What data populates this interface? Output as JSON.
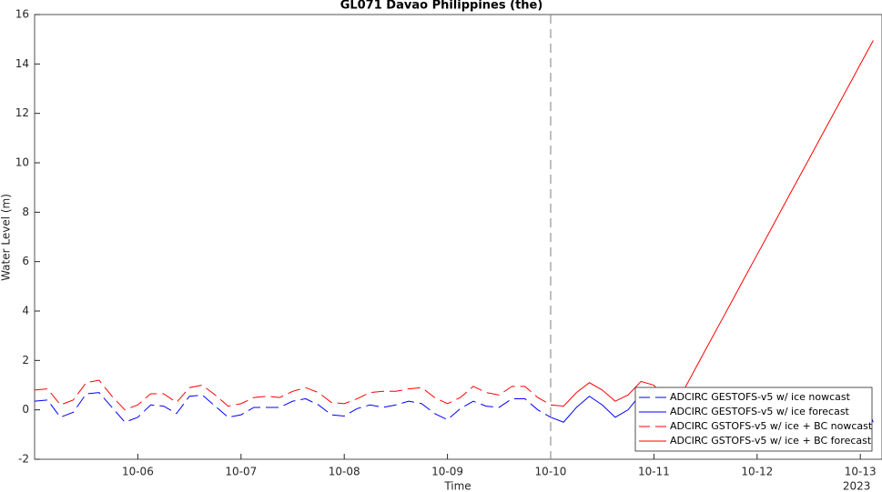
{
  "chart_data": {
    "type": "line",
    "title": "GL071 Davao Philippines (the)",
    "xlabel": "Time",
    "ylabel": "Water Level (m)",
    "x_year_label": "2023",
    "x": [
      5.0,
      5.125,
      5.25,
      5.375,
      5.5,
      5.625,
      5.75,
      5.875,
      6.0,
      6.125,
      6.25,
      6.375,
      6.5,
      6.625,
      6.75,
      6.875,
      7.0,
      7.125,
      7.25,
      7.375,
      7.5,
      7.625,
      7.75,
      7.875,
      8.0,
      8.125,
      8.25,
      8.375,
      8.5,
      8.625,
      8.75,
      8.875,
      9.0,
      9.125,
      9.25,
      9.375,
      9.5,
      9.625,
      9.75,
      9.875,
      10.0,
      10.125,
      10.25,
      10.375,
      10.5,
      10.625,
      10.75,
      10.875,
      11.0,
      11.125,
      11.25,
      11.375,
      11.5,
      11.625,
      11.75,
      11.875,
      12.0,
      12.125,
      12.25,
      12.375,
      12.5,
      12.625,
      12.75,
      12.875,
      13.0,
      13.125
    ],
    "xlim": [
      5,
      13.21
    ],
    "xticks": [
      {
        "value": 6,
        "label": "10-06"
      },
      {
        "value": 7,
        "label": "10-07"
      },
      {
        "value": 8,
        "label": "10-08"
      },
      {
        "value": 9,
        "label": "10-09"
      },
      {
        "value": 10,
        "label": "10-10"
      },
      {
        "value": 11,
        "label": "10-11"
      },
      {
        "value": 12,
        "label": "10-12"
      },
      {
        "value": 13,
        "label": "10-13"
      }
    ],
    "ylim": [
      -2,
      16
    ],
    "yticks": [
      -2,
      0,
      2,
      4,
      6,
      8,
      10,
      12,
      14,
      16
    ],
    "vline_x": 10,
    "legend": "lower right",
    "series": [
      {
        "name": "ADCIRC GESTOFS-v5 w/ ice nowcast",
        "color": "#0000ff",
        "dash": "dashed",
        "values": [
          0.35,
          0.4,
          -0.3,
          -0.1,
          0.65,
          0.7,
          0.1,
          -0.5,
          -0.3,
          0.2,
          0.15,
          -0.15,
          0.55,
          0.6,
          0.15,
          -0.3,
          -0.2,
          0.1,
          0.1,
          0.1,
          0.35,
          0.45,
          0.2,
          -0.2,
          -0.25,
          0.05,
          0.2,
          0.1,
          0.2,
          0.35,
          0.25,
          -0.15,
          -0.4,
          0.05,
          0.35,
          0.15,
          0.1,
          0.45,
          0.45,
          0.0,
          -0.3,
          null,
          null,
          null,
          null,
          null,
          null,
          null,
          null,
          null,
          null,
          null,
          null,
          null,
          null,
          null,
          null,
          null,
          null,
          null,
          null,
          null,
          null,
          null,
          null,
          null
        ]
      },
      {
        "name": "ADCIRC GESTOFS-v5 w/ ice forecast",
        "color": "#0000ff",
        "dash": "solid",
        "values": [
          null,
          null,
          null,
          null,
          null,
          null,
          null,
          null,
          null,
          null,
          null,
          null,
          null,
          null,
          null,
          null,
          null,
          null,
          null,
          null,
          null,
          null,
          null,
          null,
          null,
          null,
          null,
          null,
          null,
          null,
          null,
          null,
          null,
          null,
          null,
          null,
          null,
          null,
          null,
          null,
          -0.3,
          -0.5,
          0.1,
          0.55,
          0.2,
          -0.3,
          0.0,
          0.65,
          0.5,
          -0.2,
          -0.25,
          0.6,
          0.75,
          0.0,
          -0.25,
          0.45,
          0.75,
          0.1,
          -0.3,
          0.4,
          0.8,
          0.15,
          -0.3,
          0.35,
          0.8,
          -0.5
        ]
      },
      {
        "name": "ADCIRC GSTOFS-v5 w/ ice + BC nowcast",
        "color": "#ff0000",
        "dash": "dashed",
        "values": [
          0.8,
          0.85,
          0.2,
          0.4,
          1.1,
          1.2,
          0.55,
          0.0,
          0.2,
          0.65,
          0.65,
          0.3,
          0.9,
          1.0,
          0.6,
          0.15,
          0.25,
          0.5,
          0.55,
          0.5,
          0.75,
          0.9,
          0.7,
          0.3,
          0.25,
          0.45,
          0.7,
          0.75,
          0.75,
          0.85,
          0.9,
          0.5,
          0.25,
          0.5,
          0.95,
          0.7,
          0.6,
          0.95,
          0.95,
          0.5,
          0.2,
          null,
          null,
          null,
          null,
          null,
          null,
          null,
          null,
          null,
          null,
          null,
          null,
          null,
          null,
          null,
          null,
          null,
          null,
          null,
          null,
          null,
          null,
          null,
          null,
          null
        ]
      },
      {
        "name": "ADCIRC GSTOFS-v5 w/ ice + BC forecast",
        "color": "#ff0000",
        "dash": "solid",
        "values": [
          null,
          null,
          null,
          null,
          null,
          null,
          null,
          null,
          null,
          null,
          null,
          null,
          null,
          null,
          null,
          null,
          null,
          null,
          null,
          null,
          null,
          null,
          null,
          null,
          null,
          null,
          null,
          null,
          null,
          null,
          null,
          null,
          null,
          null,
          null,
          null,
          null,
          null,
          null,
          null,
          0.2,
          0.15,
          0.7,
          1.1,
          0.8,
          0.35,
          0.6,
          1.15,
          1.0,
          0.35,
          0.5,
          1.46,
          2.43,
          3.39,
          4.35,
          5.32,
          6.28,
          7.24,
          8.21,
          9.17,
          10.13,
          11.1,
          12.06,
          13.02,
          13.99,
          14.95
        ]
      }
    ]
  }
}
